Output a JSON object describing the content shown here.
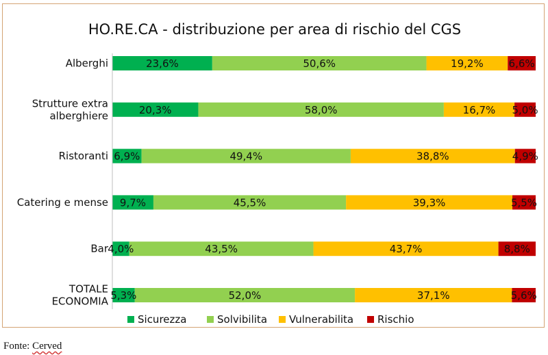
{
  "chart_data": {
    "type": "bar",
    "orientation": "horizontal",
    "stacked": "percent",
    "title": "HO.RE.CA - distribuzione per area di rischio del CGS",
    "categories": [
      [
        "Alberghi"
      ],
      [
        "Strutture extra",
        "alberghiere"
      ],
      [
        "Ristoranti"
      ],
      [
        "Catering e mense"
      ],
      [
        "Bar"
      ],
      [
        "TOTALE",
        "ECONOMIA"
      ]
    ],
    "series": [
      {
        "name": "Sicurezza",
        "color": "#00b050",
        "values": [
          23.6,
          20.3,
          6.9,
          9.7,
          4.0,
          5.3
        ],
        "labels": [
          "23,6%",
          "20,3%",
          "6,9%",
          "9,7%",
          "4,0%",
          "5,3%"
        ]
      },
      {
        "name": "Solvibilita",
        "color": "#92d050",
        "values": [
          50.6,
          58.0,
          49.4,
          45.5,
          43.5,
          52.0
        ],
        "labels": [
          "50,6%",
          "58,0%",
          "49,4%",
          "45,5%",
          "43,5%",
          "52,0%"
        ]
      },
      {
        "name": "Vulnerabilita",
        "color": "#ffc000",
        "values": [
          19.2,
          16.7,
          38.8,
          39.3,
          43.7,
          37.1
        ],
        "labels": [
          "19,2%",
          "16,7%",
          "38,8%",
          "39,3%",
          "43,7%",
          "37,1%"
        ]
      },
      {
        "name": "Rischio",
        "color": "#c00000",
        "values": [
          6.6,
          5.0,
          4.9,
          5.5,
          8.8,
          5.6
        ],
        "labels": [
          "6,6%",
          "5,0%",
          "4,9%",
          "5,5%",
          "8,8%",
          "5,6%"
        ]
      }
    ],
    "xlim": [
      0,
      100
    ],
    "legend": "bottom",
    "grid": false
  },
  "source": {
    "prefix": "Fonte: ",
    "name": "Cerved"
  }
}
